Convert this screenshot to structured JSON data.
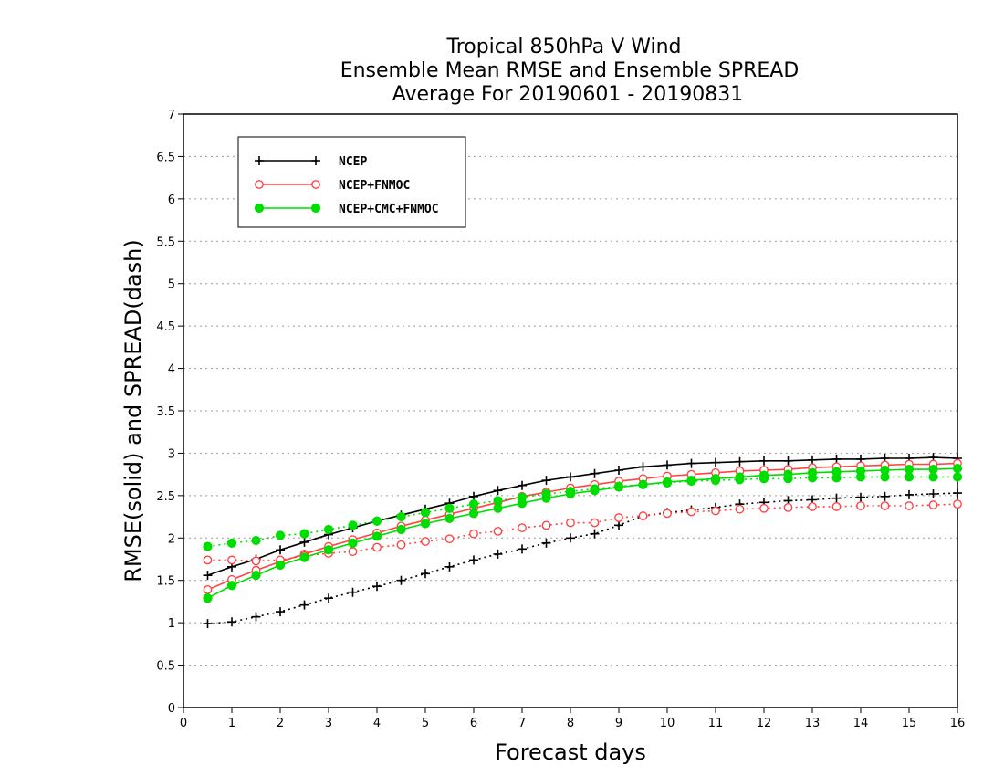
{
  "chart_data": {
    "type": "line",
    "title_lines": [
      "Tropical 850hPa V Wind",
      "Ensemble Mean RMSE and Ensemble SPREAD",
      "Average For 20190601 - 20190831"
    ],
    "xlabel": "Forecast days",
    "ylabel": "RMSE(solid) and SPREAD(dash)",
    "xlim": [
      0,
      16
    ],
    "ylim": [
      0,
      7
    ],
    "xticks": [
      "0",
      "1",
      "2",
      "3",
      "4",
      "5",
      "6",
      "7",
      "8",
      "9",
      "10",
      "11",
      "12",
      "13",
      "14",
      "15",
      "16"
    ],
    "yticks": [
      "0",
      "0.5",
      "1",
      "1.5",
      "2",
      "2.5",
      "3",
      "3.5",
      "4",
      "4.5",
      "5",
      "5.5",
      "6",
      "6.5",
      "7"
    ],
    "ytick_values": [
      0,
      0.5,
      1,
      1.5,
      2,
      2.5,
      3,
      3.5,
      4,
      4.5,
      5,
      5.5,
      6,
      6.5,
      7
    ],
    "grid": "horizontal dotted",
    "legend_position": "top-left",
    "x": [
      0.5,
      1,
      1.5,
      2,
      2.5,
      3,
      3.5,
      4,
      4.5,
      5,
      5.5,
      6,
      6.5,
      7,
      7.5,
      8,
      8.5,
      9,
      9.5,
      10,
      10.5,
      11,
      11.5,
      12,
      12.5,
      13,
      13.5,
      14,
      14.5,
      15,
      15.5,
      16
    ],
    "series": [
      {
        "name": "NCEP",
        "color": "#000000",
        "marker": "plus",
        "rmse": [
          1.56,
          1.66,
          1.75,
          1.86,
          1.95,
          2.04,
          2.12,
          2.2,
          2.27,
          2.34,
          2.41,
          2.49,
          2.56,
          2.62,
          2.68,
          2.72,
          2.76,
          2.8,
          2.84,
          2.86,
          2.88,
          2.89,
          2.9,
          2.91,
          2.91,
          2.92,
          2.93,
          2.93,
          2.94,
          2.94,
          2.95,
          2.94
        ],
        "spread": [
          0.99,
          1.01,
          1.07,
          1.13,
          1.21,
          1.29,
          1.36,
          1.43,
          1.5,
          1.58,
          1.66,
          1.74,
          1.81,
          1.87,
          1.94,
          2.0,
          2.05,
          2.15,
          2.26,
          2.3,
          2.33,
          2.36,
          2.4,
          2.42,
          2.44,
          2.45,
          2.47,
          2.48,
          2.49,
          2.51,
          2.52,
          2.53
        ]
      },
      {
        "name": "NCEP+FNMOC",
        "color": "#ff4444",
        "marker": "open-circle",
        "rmse": [
          1.39,
          1.51,
          1.62,
          1.72,
          1.81,
          1.9,
          1.98,
          2.06,
          2.14,
          2.21,
          2.28,
          2.35,
          2.42,
          2.49,
          2.54,
          2.59,
          2.63,
          2.67,
          2.7,
          2.73,
          2.75,
          2.77,
          2.79,
          2.8,
          2.81,
          2.83,
          2.84,
          2.85,
          2.86,
          2.87,
          2.87,
          2.88
        ],
        "spread": [
          1.74,
          1.74,
          1.73,
          1.74,
          1.79,
          1.82,
          1.84,
          1.89,
          1.92,
          1.96,
          1.99,
          2.05,
          2.08,
          2.12,
          2.15,
          2.18,
          2.18,
          2.24,
          2.26,
          2.29,
          2.31,
          2.32,
          2.34,
          2.35,
          2.36,
          2.37,
          2.37,
          2.38,
          2.38,
          2.38,
          2.39,
          2.4
        ]
      },
      {
        "name": "NCEP+CMC+FNMOC",
        "color": "#00dd00",
        "marker": "filled-circle",
        "rmse": [
          1.29,
          1.44,
          1.56,
          1.68,
          1.77,
          1.86,
          1.94,
          2.02,
          2.1,
          2.17,
          2.23,
          2.29,
          2.35,
          2.41,
          2.47,
          2.52,
          2.56,
          2.6,
          2.63,
          2.66,
          2.68,
          2.7,
          2.72,
          2.74,
          2.75,
          2.77,
          2.78,
          2.79,
          2.8,
          2.81,
          2.81,
          2.82
        ],
        "spread": [
          1.9,
          1.94,
          1.97,
          2.03,
          2.05,
          2.1,
          2.15,
          2.2,
          2.25,
          2.3,
          2.35,
          2.4,
          2.44,
          2.48,
          2.52,
          2.55,
          2.58,
          2.61,
          2.63,
          2.65,
          2.67,
          2.68,
          2.69,
          2.7,
          2.7,
          2.71,
          2.71,
          2.72,
          2.72,
          2.72,
          2.72,
          2.72
        ]
      }
    ]
  }
}
